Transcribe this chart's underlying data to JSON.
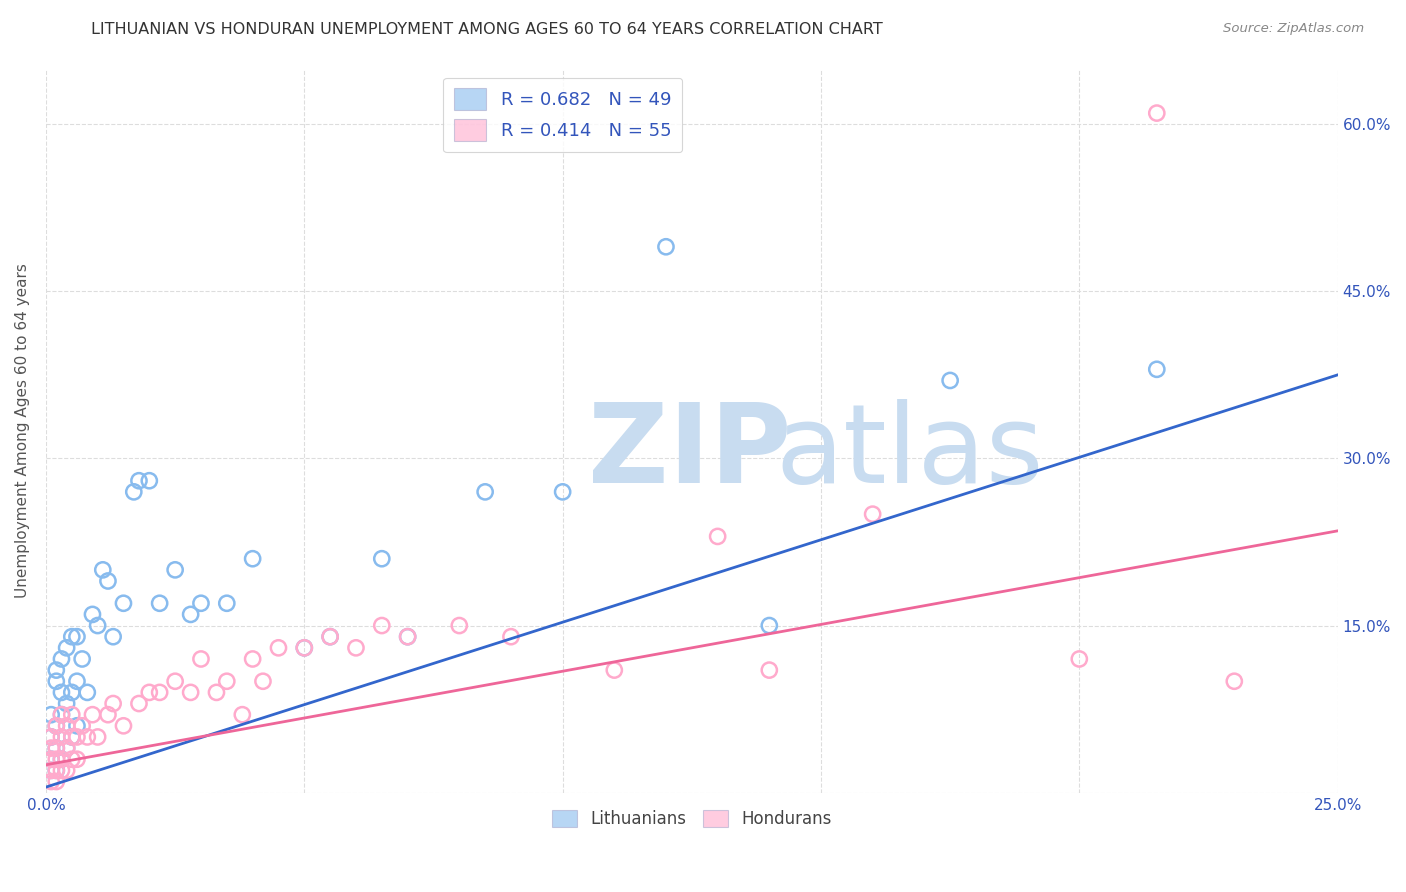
{
  "title": "LITHUANIAN VS HONDURAN UNEMPLOYMENT AMONG AGES 60 TO 64 YEARS CORRELATION CHART",
  "source": "Source: ZipAtlas.com",
  "ylabel": "Unemployment Among Ages 60 to 64 years",
  "xlim": [
    0.0,
    0.25
  ],
  "ylim": [
    0.0,
    0.65
  ],
  "xticks": [
    0.0,
    0.05,
    0.1,
    0.15,
    0.2,
    0.25
  ],
  "yticks": [
    0.0,
    0.15,
    0.3,
    0.45,
    0.6
  ],
  "left_ytick_labels": [
    "",
    "",
    "",
    "",
    ""
  ],
  "right_ytick_labels": [
    "",
    "15.0%",
    "30.0%",
    "45.0%",
    "60.0%"
  ],
  "xtick_labels": [
    "0.0%",
    "",
    "",
    "",
    "",
    "25.0%"
  ],
  "blue_color": "#88BBEE",
  "pink_color": "#FFAACC",
  "trend_blue": "#3366CC",
  "trend_pink": "#EE6699",
  "legend_text_color": "#3355BB",
  "background_color": "#FFFFFF",
  "grid_color": "#DDDDDD",
  "legend_R1": "R = 0.682",
  "legend_N1": "N = 49",
  "legend_R2": "R = 0.414",
  "legend_N2": "N = 55",
  "blue_scatter_x": [
    0.001,
    0.001,
    0.001,
    0.001,
    0.002,
    0.002,
    0.002,
    0.002,
    0.002,
    0.003,
    0.003,
    0.003,
    0.003,
    0.004,
    0.004,
    0.004,
    0.005,
    0.005,
    0.005,
    0.006,
    0.006,
    0.006,
    0.007,
    0.008,
    0.009,
    0.01,
    0.011,
    0.012,
    0.013,
    0.015,
    0.017,
    0.018,
    0.02,
    0.022,
    0.025,
    0.028,
    0.03,
    0.035,
    0.04,
    0.05,
    0.055,
    0.065,
    0.07,
    0.085,
    0.1,
    0.12,
    0.14,
    0.175,
    0.215
  ],
  "blue_scatter_y": [
    0.02,
    0.03,
    0.05,
    0.07,
    0.02,
    0.04,
    0.06,
    0.1,
    0.11,
    0.03,
    0.07,
    0.09,
    0.12,
    0.04,
    0.08,
    0.13,
    0.05,
    0.09,
    0.14,
    0.06,
    0.1,
    0.14,
    0.12,
    0.09,
    0.16,
    0.15,
    0.2,
    0.19,
    0.14,
    0.17,
    0.27,
    0.28,
    0.28,
    0.17,
    0.2,
    0.16,
    0.17,
    0.17,
    0.21,
    0.13,
    0.14,
    0.21,
    0.14,
    0.27,
    0.27,
    0.49,
    0.15,
    0.37,
    0.38
  ],
  "pink_scatter_x": [
    0.001,
    0.001,
    0.001,
    0.001,
    0.001,
    0.002,
    0.002,
    0.002,
    0.002,
    0.002,
    0.003,
    0.003,
    0.003,
    0.003,
    0.004,
    0.004,
    0.004,
    0.005,
    0.005,
    0.005,
    0.006,
    0.006,
    0.007,
    0.008,
    0.009,
    0.01,
    0.012,
    0.013,
    0.015,
    0.018,
    0.02,
    0.022,
    0.025,
    0.028,
    0.03,
    0.033,
    0.035,
    0.038,
    0.04,
    0.042,
    0.045,
    0.05,
    0.055,
    0.06,
    0.065,
    0.07,
    0.08,
    0.09,
    0.11,
    0.13,
    0.14,
    0.16,
    0.2,
    0.215,
    0.23
  ],
  "pink_scatter_y": [
    0.01,
    0.02,
    0.03,
    0.04,
    0.05,
    0.01,
    0.02,
    0.03,
    0.04,
    0.06,
    0.02,
    0.03,
    0.05,
    0.07,
    0.02,
    0.04,
    0.06,
    0.03,
    0.05,
    0.07,
    0.03,
    0.05,
    0.06,
    0.05,
    0.07,
    0.05,
    0.07,
    0.08,
    0.06,
    0.08,
    0.09,
    0.09,
    0.1,
    0.09,
    0.12,
    0.09,
    0.1,
    0.07,
    0.12,
    0.1,
    0.13,
    0.13,
    0.14,
    0.13,
    0.15,
    0.14,
    0.15,
    0.14,
    0.11,
    0.23,
    0.11,
    0.25,
    0.12,
    0.61,
    0.1
  ],
  "blue_line_x": [
    0.0,
    0.25
  ],
  "blue_line_y": [
    0.005,
    0.375
  ],
  "pink_line_x": [
    0.0,
    0.25
  ],
  "pink_line_y": [
    0.025,
    0.235
  ]
}
